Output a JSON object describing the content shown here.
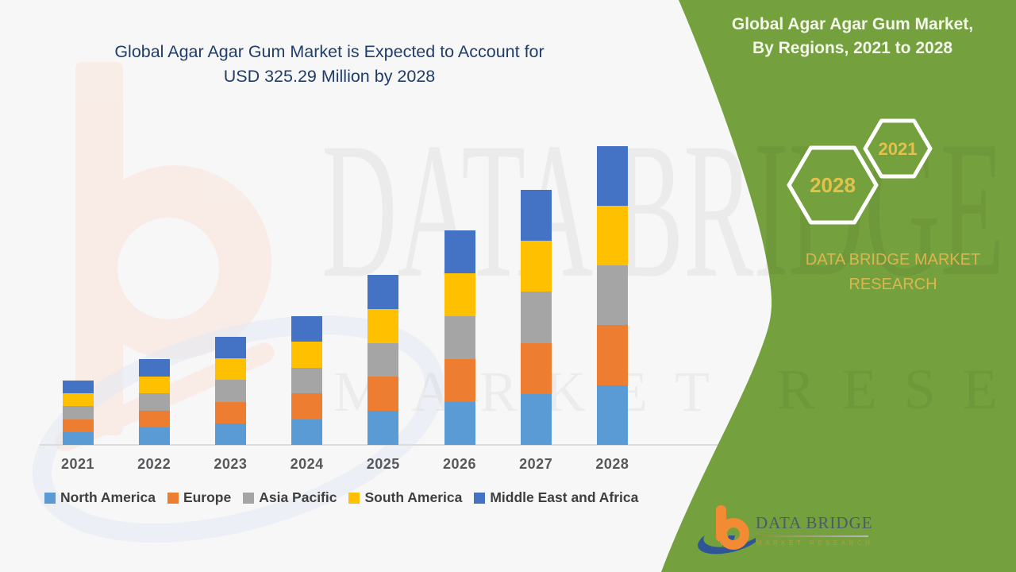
{
  "header": {
    "title_line1": "Global Agar Agar Gum Market is Expected to Account for",
    "title_line2": "USD 325.29 Million by 2028"
  },
  "panel": {
    "title_line1": "Global Agar Agar Gum Market,",
    "title_line2": "By Regions, 2021 to 2028",
    "hex_large_year": "2028",
    "hex_small_year": "2021",
    "brand_line1": "DATA BRIDGE MARKET",
    "brand_line2": "RESEARCH",
    "logo_name": "DATA BRIDGE",
    "logo_tagline": "MARKET RESEARCH"
  },
  "watermark": {
    "line1": "DATA BRIDGE",
    "line2": "MARKET RESEARCH"
  },
  "colors": {
    "green_panel": "#74A03E",
    "gold_text": "#DDBC4D",
    "title_navy": "#1F3D6B",
    "north_america": "#5B9BD5",
    "europe": "#ED7D31",
    "asia_pacific": "#A5A5A5",
    "south_america": "#FFC000",
    "middle_east_africa": "#4472C4"
  },
  "chart_data": {
    "type": "bar",
    "stacked": true,
    "title": "Global Agar Agar Gum Market is Expected to Account for USD 325.29 Million by 2028",
    "units": "USD Million",
    "xlabel": "",
    "ylabel": "",
    "ylim": [
      0,
      340
    ],
    "grid": false,
    "legend_position": "bottom",
    "categories": [
      "2021",
      "2022",
      "2023",
      "2024",
      "2025",
      "2026",
      "2027",
      "2028"
    ],
    "totals": [
      70.1,
      93.7,
      117.4,
      139.9,
      185.1,
      233.3,
      277.4,
      325.29
    ],
    "series": [
      {
        "name": "North America",
        "color": "#5B9BD5",
        "values": [
          14.0,
          18.7,
          23.5,
          28.0,
          37.0,
          46.7,
          55.5,
          65.1
        ]
      },
      {
        "name": "Europe",
        "color": "#ED7D31",
        "values": [
          14.0,
          18.7,
          23.5,
          28.0,
          37.0,
          46.7,
          55.5,
          65.1
        ]
      },
      {
        "name": "Asia Pacific",
        "color": "#A5A5A5",
        "values": [
          14.0,
          18.7,
          23.5,
          28.0,
          37.0,
          46.7,
          55.5,
          65.1
        ]
      },
      {
        "name": "South America",
        "color": "#FFC000",
        "values": [
          14.0,
          18.7,
          23.5,
          28.0,
          37.0,
          46.7,
          55.5,
          65.1
        ]
      },
      {
        "name": "Middle East and Africa",
        "color": "#4472C4",
        "values": [
          14.0,
          18.7,
          23.5,
          28.0,
          37.0,
          46.7,
          55.5,
          65.1
        ]
      }
    ]
  }
}
